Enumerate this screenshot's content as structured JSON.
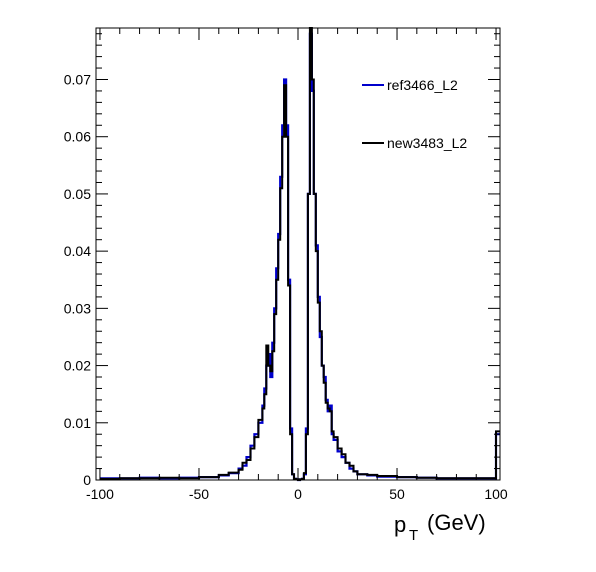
{
  "chart_data": {
    "type": "line",
    "title": "",
    "xlabel": "p",
    "xlabel_subscript": "T",
    "xlabel_unit": "(GeV)",
    "ylabel": "",
    "xlim": [
      -102,
      102
    ],
    "ylim": [
      0,
      0.079
    ],
    "xticks": [
      -100,
      -50,
      0,
      50,
      100
    ],
    "xtick_labels": [
      "-100",
      "-50",
      "0",
      "50",
      "100"
    ],
    "yticks": [
      0,
      0.01,
      0.02,
      0.03,
      0.04,
      0.05,
      0.06,
      0.07
    ],
    "ytick_labels": [
      "0",
      "0.01",
      "0.02",
      "0.03",
      "0.04",
      "0.05",
      "0.06",
      "0.07"
    ],
    "grid": false,
    "legend_position": "top-right",
    "series": [
      {
        "name": "ref3466_L2",
        "color": "#0000cc",
        "x": [
          -100,
          -90,
          -80,
          -70,
          -60,
          -50,
          -40,
          -35,
          -30,
          -28,
          -26,
          -24,
          -22,
          -20,
          -18,
          -17,
          -16,
          -15,
          -14,
          -13,
          -12,
          -11,
          -10,
          -9,
          -8,
          -7,
          -6,
          -5,
          -4,
          -3,
          -2,
          -1,
          0,
          1,
          2,
          3,
          4,
          5,
          6,
          7,
          8,
          9,
          10,
          11,
          12,
          13,
          14,
          15,
          16,
          17,
          18,
          20,
          22,
          24,
          26,
          28,
          30,
          35,
          40,
          50,
          60,
          70,
          80,
          90,
          100
        ],
        "y": [
          0.0003,
          0.0003,
          0.0004,
          0.0003,
          0.0004,
          0.0005,
          0.0008,
          0.0012,
          0.002,
          0.0025,
          0.004,
          0.006,
          0.008,
          0.01,
          0.013,
          0.016,
          0.02,
          0.022,
          0.018,
          0.024,
          0.03,
          0.037,
          0.043,
          0.053,
          0.062,
          0.07,
          0.062,
          0.035,
          0.009,
          0.001,
          0.0002,
          0.0001,
          0.0,
          0.0001,
          0.0002,
          0.001,
          0.009,
          0.05,
          0.078,
          0.068,
          0.05,
          0.041,
          0.032,
          0.025,
          0.02,
          0.018,
          0.014,
          0.012,
          0.013,
          0.008,
          0.007,
          0.005,
          0.004,
          0.003,
          0.002,
          0.0015,
          0.001,
          0.0008,
          0.0006,
          0.0005,
          0.0004,
          0.0003,
          0.0003,
          0.0003,
          0.008
        ]
      },
      {
        "name": "new3483_L2",
        "color": "#000000",
        "x": [
          -100,
          -90,
          -80,
          -70,
          -60,
          -50,
          -40,
          -35,
          -30,
          -28,
          -26,
          -24,
          -22,
          -20,
          -18,
          -17,
          -16,
          -15,
          -14,
          -13,
          -12,
          -11,
          -10,
          -9,
          -8,
          -7,
          -6,
          -5,
          -4,
          -3,
          -2,
          -1,
          0,
          1,
          2,
          3,
          4,
          5,
          6,
          7,
          8,
          9,
          10,
          11,
          12,
          13,
          14,
          15,
          16,
          17,
          18,
          20,
          22,
          24,
          26,
          28,
          30,
          35,
          40,
          50,
          60,
          70,
          80,
          90,
          100
        ],
        "y": [
          0.0002,
          0.0003,
          0.0003,
          0.0004,
          0.0003,
          0.0005,
          0.0009,
          0.0013,
          0.0018,
          0.003,
          0.0035,
          0.0055,
          0.0075,
          0.0105,
          0.0125,
          0.015,
          0.0235,
          0.02,
          0.019,
          0.0225,
          0.029,
          0.035,
          0.042,
          0.051,
          0.06,
          0.069,
          0.06,
          0.034,
          0.008,
          0.001,
          0.0002,
          0.0001,
          0.0,
          0.0001,
          0.0002,
          0.0012,
          0.008,
          0.05,
          0.079,
          0.07,
          0.05,
          0.04,
          0.031,
          0.026,
          0.02,
          0.017,
          0.0135,
          0.0125,
          0.012,
          0.0085,
          0.0075,
          0.0055,
          0.0045,
          0.003,
          0.0025,
          0.0015,
          0.001,
          0.0009,
          0.0007,
          0.0005,
          0.0004,
          0.0003,
          0.0003,
          0.0003,
          0.0085
        ]
      }
    ]
  }
}
